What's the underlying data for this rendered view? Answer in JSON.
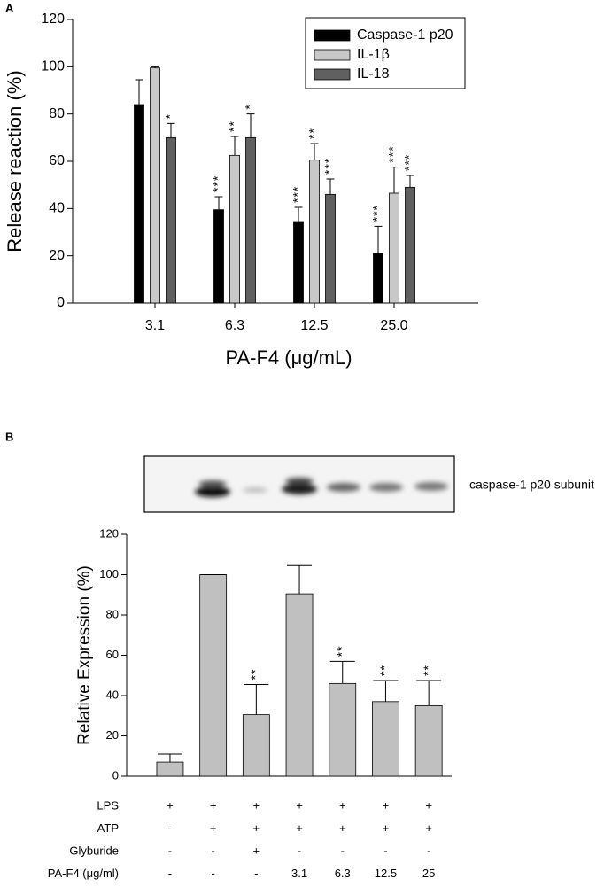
{
  "panel_labels": [
    "A",
    "B"
  ],
  "chart_data": [
    {
      "type": "bar",
      "ylabel": "Release reaction (%)",
      "xlabel": "PA-F4 (μg/mL)",
      "categories": [
        "3.1",
        "6.3",
        "12.5",
        "25.0"
      ],
      "series": [
        {
          "name": "Caspase-1 p20",
          "color": "#000000",
          "values": [
            84,
            39.5,
            34.5,
            21
          ],
          "errors": [
            10.5,
            5.5,
            6,
            11.5
          ],
          "stars": [
            null,
            "***",
            "***",
            "***"
          ]
        },
        {
          "name": "IL-1β",
          "color": "#c8c8c8",
          "values": [
            99.5,
            62.5,
            60.5,
            46.5
          ],
          "errors": [
            0.5,
            8,
            7,
            11
          ],
          "stars": [
            null,
            "**",
            "**",
            "***"
          ]
        },
        {
          "name": "IL-18",
          "color": "#606060",
          "values": [
            70,
            70,
            46,
            49
          ],
          "errors": [
            6,
            10,
            6.5,
            5
          ],
          "stars": [
            "*",
            "*",
            "***",
            "***"
          ]
        }
      ],
      "ylim": [
        0,
        120
      ],
      "yticks": [
        0,
        20,
        40,
        60,
        80,
        100,
        120
      ],
      "legend": "upper right"
    },
    {
      "type": "bar",
      "ylabel": "Relative Expression (%)",
      "categories": [
        null,
        null,
        null,
        null,
        null,
        null,
        null
      ],
      "values": [
        7,
        100,
        30.5,
        90.5,
        46,
        37,
        35
      ],
      "errors": [
        4,
        0,
        15,
        14,
        11,
        10.5,
        12.5
      ],
      "stars": [
        null,
        null,
        "**",
        null,
        "**",
        "**",
        "**"
      ],
      "color": "#c0c0c0",
      "ylim": [
        0,
        120
      ],
      "yticks": [
        0,
        20,
        40,
        60,
        80,
        100,
        120
      ]
    }
  ],
  "blot": {
    "label": "caspase-1 p20 subunit"
  },
  "conditions": {
    "rows": [
      {
        "label": "LPS",
        "values": [
          "+",
          "+",
          "+",
          "+",
          "+",
          "+",
          "+"
        ]
      },
      {
        "label": "ATP",
        "values": [
          "-",
          "+",
          "+",
          "+",
          "+",
          "+",
          "+"
        ]
      },
      {
        "label": "Glyburide",
        "values": [
          "-",
          "-",
          "+",
          "-",
          "-",
          "-",
          "-"
        ]
      },
      {
        "label": "PA-F4 (μg/ml)",
        "values": [
          "-",
          "-",
          "-",
          "3.1",
          "6.3",
          "12.5",
          "25"
        ]
      }
    ]
  }
}
